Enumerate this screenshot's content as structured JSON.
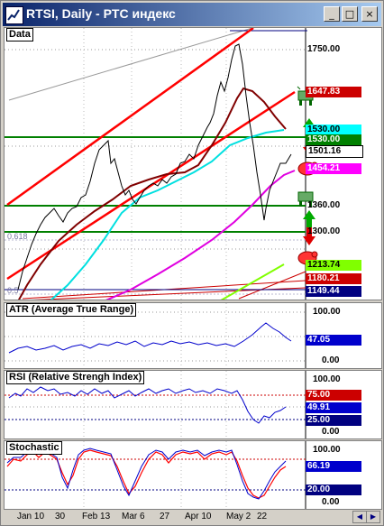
{
  "window": {
    "title": "RTSI, Daily - PTC индекс",
    "minimize_glyph": "_",
    "maximize_glyph": "□",
    "close_glyph": "×"
  },
  "panes": {
    "main": {
      "label": "Data",
      "ticks": [
        "1750.00",
        "1360.00",
        "1300.00"
      ],
      "price_tags": [
        {
          "text": "1647.83",
          "bg": "#cc0000",
          "fg": "#ffffff"
        },
        {
          "text": "1530.00",
          "bg": "#00ffff",
          "fg": "#000000"
        },
        {
          "text": "1501.16",
          "bg": "#ffffff",
          "fg": "#000000"
        },
        {
          "text": "1454.21",
          "bg": "#ff00ff",
          "fg": "#ffffff"
        },
        {
          "text": "1213.74",
          "bg": "#80ff00",
          "fg": "#000000"
        },
        {
          "text": "1180.21",
          "bg": "#cc0000",
          "fg": "#ffffff"
        },
        {
          "text": "1149.44",
          "bg": "#000080",
          "fg": "#ffffff"
        }
      ],
      "fib_labels": [
        "0.618",
        "0.5"
      ],
      "icons": [
        "bull-icon",
        "up-arrow-icon",
        "down-arrow-icon",
        "bear-icon",
        "bull-icon",
        "up-arrow-icon",
        "down-arrow-icon",
        "bear-icon"
      ]
    },
    "atr": {
      "label": "ATR (Average True Range)",
      "ticks": [
        "100.00",
        "0.00"
      ],
      "value": "47.05",
      "value_bg": "#0000cc"
    },
    "rsi": {
      "label": "RSI (Relative Strengh Index)",
      "ticks": [
        "100.00",
        "0.00"
      ],
      "levels": [
        {
          "text": "75.00",
          "bg": "#cc0000",
          "fg": "#ffffff"
        },
        {
          "text": "49.91",
          "bg": "#0000cc",
          "fg": "#ffffff"
        },
        {
          "text": "25.00",
          "bg": "#000080",
          "fg": "#ffffff"
        }
      ]
    },
    "stoch": {
      "label": "Stochastic",
      "ticks": [
        "100.00",
        "0.00"
      ],
      "levels": [
        {
          "text": "66.19",
          "bg": "#0000cc",
          "fg": "#ffffff"
        },
        {
          "text": "20.00",
          "bg": "#000080",
          "fg": "#ffffff"
        }
      ]
    }
  },
  "date_axis": [
    "Jan 10",
    "30",
    "Feb 13",
    "Mar 6",
    "27",
    "Apr 10",
    "May 2",
    "22"
  ],
  "colors": {
    "price": "#000000",
    "ma_dark": "#800000",
    "ma_cyan": "#00e0e0",
    "ma_magenta": "#e000e0",
    "trend_red": "#ff0000",
    "support_green": "#008000",
    "indicator_blue": "#0000cc",
    "stoch_red": "#ff0000"
  }
}
